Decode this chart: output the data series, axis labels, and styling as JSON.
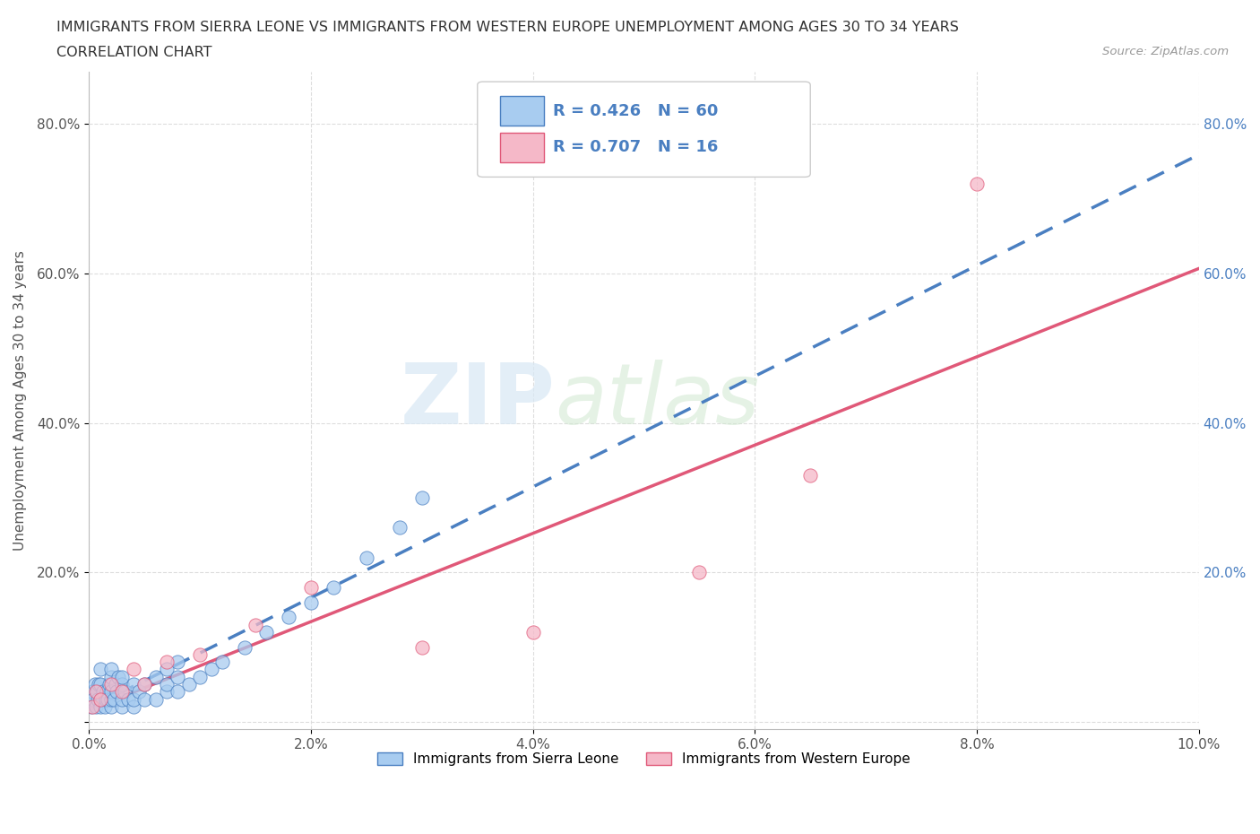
{
  "title_line1": "IMMIGRANTS FROM SIERRA LEONE VS IMMIGRANTS FROM WESTERN EUROPE UNEMPLOYMENT AMONG AGES 30 TO 34 YEARS",
  "title_line2": "CORRELATION CHART",
  "source_text": "Source: ZipAtlas.com",
  "ylabel": "Unemployment Among Ages 30 to 34 years",
  "xlim": [
    0.0,
    0.1
  ],
  "ylim": [
    -0.01,
    0.87
  ],
  "xticks": [
    0.0,
    0.02,
    0.04,
    0.06,
    0.08,
    0.1
  ],
  "yticks": [
    0.0,
    0.2,
    0.4,
    0.6,
    0.8
  ],
  "xticklabels": [
    "0.0%",
    "2.0%",
    "4.0%",
    "6.0%",
    "8.0%",
    "10.0%"
  ],
  "yticklabels_left": [
    "",
    "20.0%",
    "40.0%",
    "60.0%",
    "80.0%"
  ],
  "yticklabels_right": [
    "",
    "20.0%",
    "40.0%",
    "60.0%",
    "80.0%"
  ],
  "legend_label1": "Immigrants from Sierra Leone",
  "legend_label2": "Immigrants from Western Europe",
  "R1": 0.426,
  "N1": 60,
  "R2": 0.707,
  "N2": 16,
  "color1": "#a8ccf0",
  "color2": "#f5b8c8",
  "trend_color1": "#4a7fc1",
  "trend_color2": "#e05878",
  "watermark_zip": "ZIP",
  "watermark_atlas": "atlas",
  "bg_color": "#ffffff",
  "grid_color": "#dddddd",
  "sl_x": [
    0.0002,
    0.0003,
    0.0004,
    0.0005,
    0.0006,
    0.0007,
    0.0008,
    0.0009,
    0.001,
    0.001,
    0.001,
    0.001,
    0.0012,
    0.0013,
    0.0014,
    0.0015,
    0.0016,
    0.0017,
    0.0018,
    0.002,
    0.002,
    0.002,
    0.002,
    0.002,
    0.0022,
    0.0024,
    0.0025,
    0.0026,
    0.003,
    0.003,
    0.003,
    0.003,
    0.0032,
    0.0035,
    0.004,
    0.004,
    0.004,
    0.0045,
    0.005,
    0.005,
    0.006,
    0.006,
    0.007,
    0.007,
    0.007,
    0.008,
    0.008,
    0.008,
    0.009,
    0.01,
    0.011,
    0.012,
    0.014,
    0.016,
    0.018,
    0.02,
    0.022,
    0.025,
    0.028,
    0.03
  ],
  "sl_y": [
    0.02,
    0.04,
    0.03,
    0.05,
    0.02,
    0.04,
    0.03,
    0.05,
    0.02,
    0.03,
    0.05,
    0.07,
    0.03,
    0.04,
    0.02,
    0.03,
    0.04,
    0.03,
    0.05,
    0.02,
    0.03,
    0.04,
    0.06,
    0.07,
    0.03,
    0.05,
    0.04,
    0.06,
    0.02,
    0.03,
    0.05,
    0.06,
    0.04,
    0.03,
    0.02,
    0.03,
    0.05,
    0.04,
    0.03,
    0.05,
    0.03,
    0.06,
    0.04,
    0.05,
    0.07,
    0.04,
    0.06,
    0.08,
    0.05,
    0.06,
    0.07,
    0.08,
    0.1,
    0.12,
    0.14,
    0.16,
    0.18,
    0.22,
    0.26,
    0.3
  ],
  "we_x": [
    0.0003,
    0.0006,
    0.001,
    0.002,
    0.003,
    0.004,
    0.005,
    0.007,
    0.01,
    0.015,
    0.02,
    0.03,
    0.04,
    0.055,
    0.065,
    0.08
  ],
  "we_y": [
    0.02,
    0.04,
    0.03,
    0.05,
    0.04,
    0.07,
    0.05,
    0.08,
    0.09,
    0.13,
    0.18,
    0.1,
    0.12,
    0.2,
    0.33,
    0.72
  ]
}
